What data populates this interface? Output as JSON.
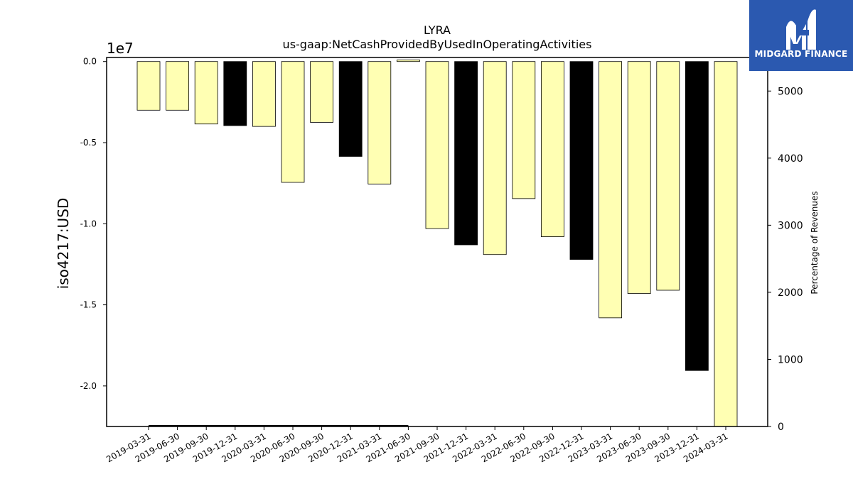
{
  "brand": {
    "name": "MIDGARD FINANCE",
    "bg_color": "#2b59b0"
  },
  "chart_data": {
    "type": "bar",
    "title": "LYRA",
    "subtitle": "us-gaap:NetCashProvidedByUsedInOperatingActivities",
    "ylabel": "iso4217:USD",
    "y_offset_label": "1e7",
    "y2label": "Percentage of Revenues",
    "categories": [
      "2019-03-31",
      "2019-06-30",
      "2019-09-30",
      "2019-12-31",
      "2020-03-31",
      "2020-06-30",
      "2020-09-30",
      "2020-12-31",
      "2021-03-31",
      "2021-06-30",
      "2021-09-30",
      "2021-12-31",
      "2022-03-31",
      "2022-06-30",
      "2022-09-30",
      "2022-12-31",
      "2023-03-31",
      "2023-06-30",
      "2023-09-30",
      "2023-12-31",
      "2024-03-31"
    ],
    "values": [
      -3.0,
      -3.0,
      -3.85,
      -3.95,
      -4.0,
      -7.45,
      -3.75,
      -5.85,
      -7.55,
      0.1,
      -10.3,
      -11.3,
      -11.9,
      -8.45,
      -10.8,
      -12.2,
      -15.8,
      -14.3,
      -14.1,
      -19.05,
      -22.6
    ],
    "value_scale": 10000000,
    "bar_types": [
      "q",
      "q",
      "q",
      "fy",
      "q",
      "q",
      "q",
      "fy",
      "q",
      "q",
      "q",
      "fy",
      "q",
      "q",
      "q",
      "fy",
      "q",
      "q",
      "q",
      "fy",
      "q"
    ],
    "colors": {
      "q": "#ffffb3",
      "fy": "#000000"
    },
    "ylim": [
      -22.5,
      0.25
    ],
    "yticks": [
      0.0,
      -0.5,
      -1.0,
      -1.5,
      -2.0
    ],
    "ytick_labels": [
      "0.0",
      "-0.5",
      "-1.0",
      "-1.5",
      "-2.0"
    ],
    "y2lim": [
      0,
      5500
    ],
    "y2ticks": [
      0,
      1000,
      2000,
      3000,
      4000,
      5000
    ],
    "y2tick_labels": [
      "0",
      "1000",
      "2000",
      "3000",
      "4000",
      "5000"
    ],
    "secondary_series": {
      "name": "",
      "x_range": [
        "2019-03-31",
        "2021-06-30"
      ],
      "value": 0
    },
    "grid": false
  }
}
